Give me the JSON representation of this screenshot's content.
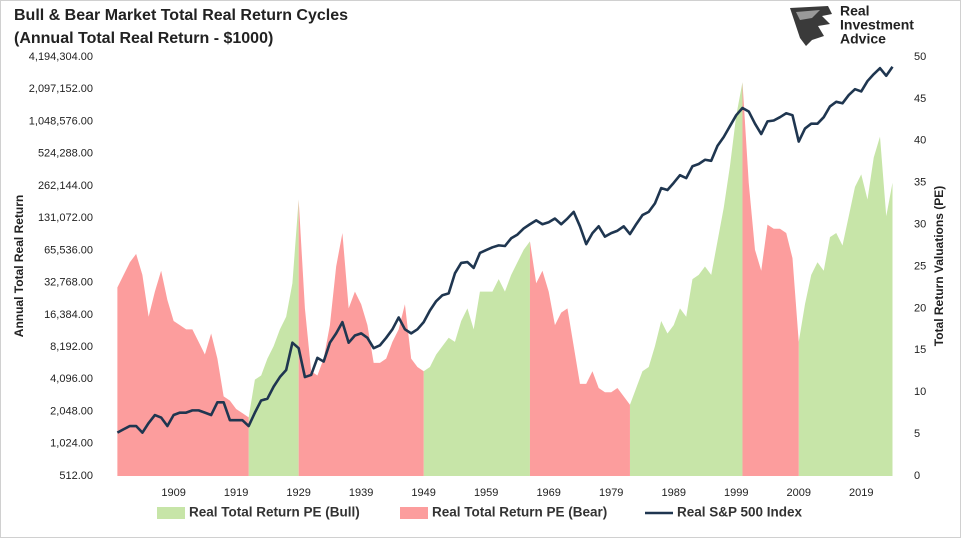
{
  "chart_data": {
    "type": "area-line",
    "title": "Bull & Bear Market Total Real Return Cycles",
    "subtitle": "(Annual Total Real Return - $1000)",
    "logo": [
      "Real",
      "Investment",
      "Advice"
    ],
    "y_label": "Annual Total Real Return",
    "y2_label": "Total Return Valuations (PE)",
    "log_y": true,
    "grid": false,
    "legend": "bottom",
    "xlim": [
      1898.5,
      2026
    ],
    "xticks": [
      1909,
      1919,
      1929,
      1939,
      1949,
      1959,
      1969,
      1979,
      1989,
      1999,
      2009,
      2019
    ],
    "ylim": [
      512,
      4194304
    ],
    "yticks": [
      {
        "value": 512,
        "label": "512.00"
      },
      {
        "value": 1024,
        "label": "1,024.00"
      },
      {
        "value": 2048,
        "label": "2,048.00"
      },
      {
        "value": 4096,
        "label": "4,096.00"
      },
      {
        "value": 8192,
        "label": "8,192.00"
      },
      {
        "value": 16384,
        "label": "16,384.00"
      },
      {
        "value": 32768,
        "label": "32,768.00"
      },
      {
        "value": 65536,
        "label": "65,536.00"
      },
      {
        "value": 131072,
        "label": "131,072.00"
      },
      {
        "value": 262144,
        "label": "262,144.00"
      },
      {
        "value": 524288,
        "label": "524,288.00"
      },
      {
        "value": 1048576,
        "label": "1,048,576.00"
      },
      {
        "value": 2097152,
        "label": "2,097,152.00"
      },
      {
        "value": 4194304,
        "label": "4,194,304.00"
      }
    ],
    "y2lim": [
      0,
      50
    ],
    "y2ticks": [
      0,
      5,
      10,
      15,
      20,
      25,
      30,
      35,
      40,
      45,
      50
    ],
    "x": [
      1900,
      1901,
      1902,
      1903,
      1904,
      1905,
      1906,
      1907,
      1908,
      1909,
      1910,
      1911,
      1912,
      1913,
      1914,
      1915,
      1916,
      1917,
      1918,
      1919,
      1920,
      1921,
      1922,
      1923,
      1924,
      1925,
      1926,
      1927,
      1928,
      1929,
      1930,
      1931,
      1932,
      1933,
      1934,
      1935,
      1936,
      1937,
      1938,
      1939,
      1940,
      1941,
      1942,
      1943,
      1944,
      1945,
      1946,
      1947,
      1948,
      1949,
      1950,
      1951,
      1952,
      1953,
      1954,
      1955,
      1956,
      1957,
      1958,
      1959,
      1960,
      1961,
      1962,
      1963,
      1964,
      1965,
      1966,
      1967,
      1968,
      1969,
      1970,
      1971,
      1972,
      1973,
      1974,
      1975,
      1976,
      1977,
      1978,
      1979,
      1980,
      1981,
      1982,
      1983,
      1984,
      1985,
      1986,
      1987,
      1988,
      1989,
      1990,
      1991,
      1992,
      1993,
      1994,
      1995,
      1996,
      1997,
      1998,
      1999,
      2000,
      2001,
      2002,
      2003,
      2004,
      2005,
      2006,
      2007,
      2008,
      2009,
      2010,
      2011,
      2012,
      2013,
      2014,
      2015,
      2016,
      2017,
      2018,
      2019,
      2020,
      2021,
      2022,
      2023,
      2024
    ],
    "series": [
      {
        "name": "Real Total Return PE (Bull)",
        "kind": "area",
        "axis": "y2",
        "color": "#c7e5a8",
        "values": [
          null,
          null,
          null,
          null,
          null,
          null,
          null,
          null,
          null,
          null,
          null,
          null,
          null,
          null,
          null,
          null,
          null,
          null,
          null,
          null,
          null,
          7,
          11.5,
          12,
          14,
          15.5,
          17.5,
          19,
          23,
          33,
          null,
          null,
          null,
          null,
          null,
          null,
          null,
          null,
          null,
          null,
          null,
          null,
          null,
          null,
          null,
          null,
          null,
          null,
          null,
          12.5,
          13,
          14.5,
          15.5,
          16.5,
          16,
          18.5,
          20,
          17.5,
          22,
          22,
          22,
          23.5,
          22,
          24,
          25.5,
          27,
          28,
          null,
          null,
          null,
          null,
          null,
          null,
          null,
          null,
          null,
          null,
          null,
          null,
          null,
          null,
          null,
          8.5,
          10.5,
          12.5,
          13,
          15.5,
          18.5,
          17,
          18,
          20,
          19,
          23.5,
          24,
          25,
          24,
          28,
          32,
          37,
          43,
          47,
          null,
          null,
          null,
          null,
          null,
          null,
          null,
          null,
          16,
          20.5,
          24,
          25.5,
          24.5,
          28.5,
          29,
          27.5,
          31,
          34.5,
          36,
          33,
          38,
          40.5,
          31,
          35
        ]
      },
      {
        "name": "Real Total Return PE (Bear)",
        "kind": "area",
        "axis": "y2",
        "color": "#fc9d9d",
        "values": [
          22.5,
          24,
          25.5,
          26.5,
          24,
          19,
          22,
          24.5,
          21,
          18.5,
          18,
          17.5,
          17.5,
          16,
          14.5,
          17,
          14,
          9.5,
          9,
          8,
          7.5,
          7,
          null,
          null,
          null,
          null,
          null,
          null,
          null,
          33,
          20,
          12.5,
          12,
          14,
          18,
          25,
          29,
          20,
          22,
          20.5,
          18,
          13.5,
          13.5,
          14,
          16,
          17.5,
          20.5,
          14,
          13,
          12.5,
          null,
          null,
          null,
          null,
          null,
          null,
          null,
          null,
          null,
          null,
          null,
          null,
          null,
          null,
          null,
          null,
          28,
          23,
          24.5,
          22,
          18,
          19.5,
          20,
          15.5,
          11,
          11,
          12.5,
          10.5,
          10,
          10,
          10.5,
          9.5,
          8.5,
          null,
          null,
          null,
          null,
          null,
          null,
          null,
          null,
          null,
          null,
          null,
          null,
          null,
          null,
          null,
          null,
          null,
          47,
          35,
          27,
          24.5,
          30,
          29.5,
          29.5,
          29,
          26,
          16,
          null,
          null,
          null,
          null,
          null,
          null,
          null,
          null,
          null,
          null,
          null,
          null,
          null,
          null,
          null
        ]
      },
      {
        "name": "Real S&P 500 Index",
        "kind": "line",
        "axis": "y",
        "color": "#1f3650",
        "values": [
          1300,
          1400,
          1500,
          1500,
          1300,
          1600,
          1900,
          1800,
          1500,
          1900,
          2000,
          2000,
          2100,
          2100,
          2000,
          1900,
          2500,
          2500,
          1700,
          1700,
          1700,
          1500,
          2000,
          2600,
          2700,
          3500,
          4300,
          5000,
          9000,
          8000,
          4300,
          4500,
          6500,
          6000,
          9000,
          11000,
          14000,
          9000,
          10500,
          11000,
          10000,
          8000,
          8500,
          10000,
          12000,
          15500,
          12000,
          11000,
          12000,
          14000,
          18000,
          22000,
          25000,
          26000,
          40000,
          50000,
          51000,
          45000,
          62000,
          66000,
          70000,
          73000,
          72000,
          85000,
          92000,
          105000,
          115000,
          125000,
          115000,
          120000,
          130000,
          115000,
          130000,
          150000,
          110000,
          75000,
          95000,
          110000,
          88000,
          95000,
          100000,
          110000,
          93000,
          115000,
          140000,
          150000,
          180000,
          250000,
          240000,
          280000,
          330000,
          310000,
          400000,
          420000,
          460000,
          450000,
          620000,
          750000,
          950000,
          1200000,
          1400000,
          1300000,
          1000000,
          800000,
          1050000,
          1070000,
          1150000,
          1250000,
          1200000,
          680000,
          900000,
          1000000,
          1000000,
          1150000,
          1450000,
          1600000,
          1550000,
          1850000,
          2100000,
          2000000,
          2500000,
          2900000,
          3300000,
          2800000,
          3400000
        ]
      }
    ]
  }
}
